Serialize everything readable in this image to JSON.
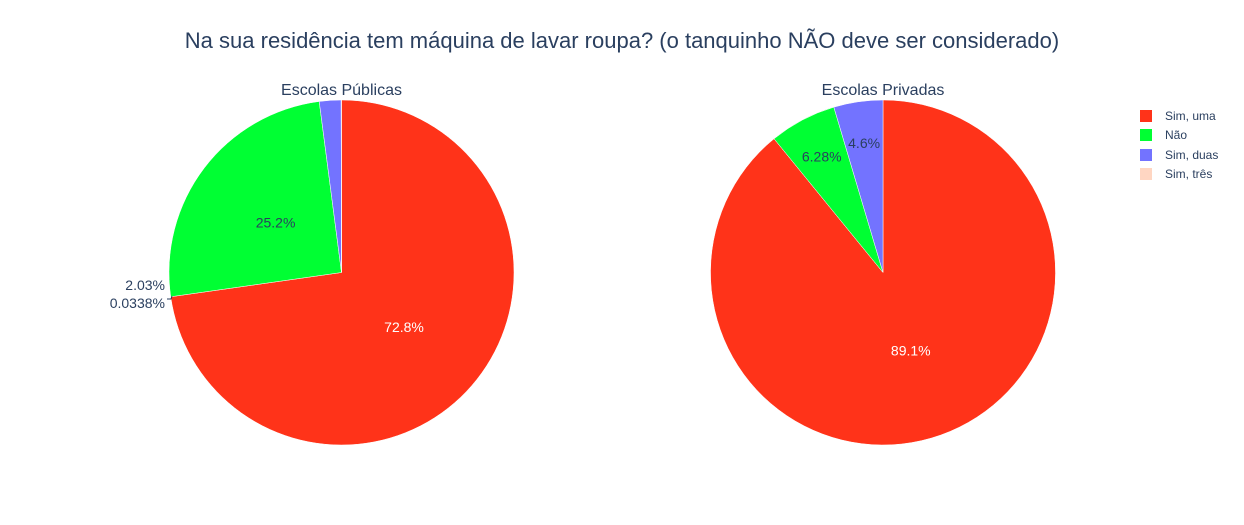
{
  "chart_data": {
    "type": "pie",
    "title": "Na sua residência tem máquina de lavar roupa? (o tanquinho NÃO deve ser considerado)",
    "legend": [
      "Sim, uma",
      "Não",
      "Sim, duas",
      "Sim, três"
    ],
    "colors": {
      "Sim, uma": "#ff3319",
      "Não": "#00ff33",
      "Sim, duas": "#7373ff",
      "Sim, três": "#ffd6c2"
    },
    "legend_position": "top-right",
    "charts": [
      {
        "subtitle": "Escolas Públicas",
        "labels": [
          "Sim, uma",
          "Não",
          "Sim, duas",
          "Sim, três"
        ],
        "values": [
          72.8,
          25.2,
          2.03,
          0.0338
        ],
        "text": [
          "72.8%",
          "25.2%",
          "2.03%",
          "0.0338%"
        ]
      },
      {
        "subtitle": "Escolas Privadas",
        "labels": [
          "Sim, uma",
          "Não",
          "Sim, duas"
        ],
        "values": [
          89.1,
          6.28,
          4.6
        ],
        "text": [
          "89.1%",
          "6.28%",
          "4.6%"
        ]
      }
    ]
  }
}
